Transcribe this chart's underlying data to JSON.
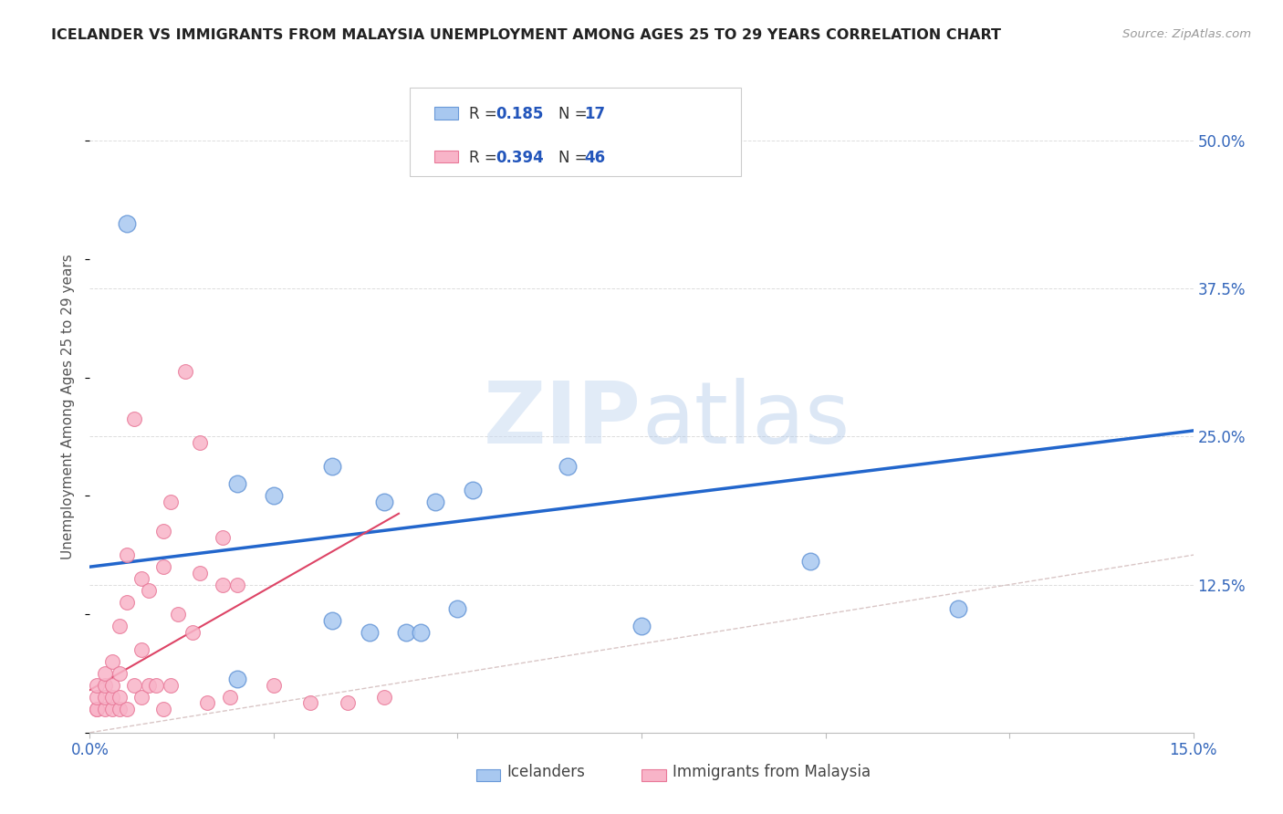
{
  "title": "ICELANDER VS IMMIGRANTS FROM MALAYSIA UNEMPLOYMENT AMONG AGES 25 TO 29 YEARS CORRELATION CHART",
  "source": "Source: ZipAtlas.com",
  "ylabel": "Unemployment Among Ages 25 to 29 years",
  "watermark_zip": "ZIP",
  "watermark_atlas": "atlas",
  "xlim": [
    0.0,
    0.15
  ],
  "ylim": [
    0.0,
    0.55
  ],
  "xtick_vals": [
    0.0,
    0.025,
    0.05,
    0.075,
    0.1,
    0.125,
    0.15
  ],
  "xticklabels": [
    "0.0%",
    "",
    "",
    "",
    "",
    "",
    "15.0%"
  ],
  "yticks_right": [
    0.0,
    0.125,
    0.25,
    0.375,
    0.5
  ],
  "yticklabels_right": [
    "",
    "12.5%",
    "25.0%",
    "37.5%",
    "50.0%"
  ],
  "legend_blue_R": "0.185",
  "legend_blue_N": "17",
  "legend_pink_R": "0.394",
  "legend_pink_N": "46",
  "icelanders_color": "#a8c8f0",
  "immigrants_color": "#f8b4c8",
  "icelanders_edge": "#6898d8",
  "immigrants_edge": "#e87898",
  "trend_blue_color": "#2266cc",
  "trend_pink_color": "#dd4466",
  "identity_line_color": "#d0b8b8",
  "blue_trend_x0": 0.0,
  "blue_trend_y0": 0.14,
  "blue_trend_x1": 0.15,
  "blue_trend_y1": 0.255,
  "pink_trend_x0": 0.0,
  "pink_trend_y0": 0.036,
  "pink_trend_x1": 0.042,
  "pink_trend_y1": 0.185,
  "blue_x": [
    0.005,
    0.02,
    0.02,
    0.025,
    0.033,
    0.033,
    0.038,
    0.04,
    0.043,
    0.045,
    0.047,
    0.05,
    0.052,
    0.065,
    0.075,
    0.098,
    0.118
  ],
  "blue_y": [
    0.43,
    0.045,
    0.21,
    0.2,
    0.095,
    0.225,
    0.085,
    0.195,
    0.085,
    0.085,
    0.195,
    0.105,
    0.205,
    0.225,
    0.09,
    0.145,
    0.105
  ],
  "pink_x": [
    0.001,
    0.001,
    0.001,
    0.001,
    0.002,
    0.002,
    0.002,
    0.002,
    0.003,
    0.003,
    0.003,
    0.003,
    0.004,
    0.004,
    0.004,
    0.004,
    0.005,
    0.005,
    0.005,
    0.006,
    0.006,
    0.007,
    0.007,
    0.007,
    0.008,
    0.008,
    0.009,
    0.01,
    0.01,
    0.01,
    0.011,
    0.011,
    0.012,
    0.013,
    0.014,
    0.015,
    0.015,
    0.016,
    0.018,
    0.018,
    0.019,
    0.02,
    0.025,
    0.03,
    0.035,
    0.04
  ],
  "pink_y": [
    0.02,
    0.02,
    0.03,
    0.04,
    0.02,
    0.03,
    0.04,
    0.05,
    0.02,
    0.03,
    0.04,
    0.06,
    0.02,
    0.03,
    0.05,
    0.09,
    0.02,
    0.11,
    0.15,
    0.04,
    0.265,
    0.03,
    0.07,
    0.13,
    0.04,
    0.12,
    0.04,
    0.02,
    0.14,
    0.17,
    0.04,
    0.195,
    0.1,
    0.305,
    0.085,
    0.245,
    0.135,
    0.025,
    0.125,
    0.165,
    0.03,
    0.125,
    0.04,
    0.025,
    0.025,
    0.03
  ]
}
